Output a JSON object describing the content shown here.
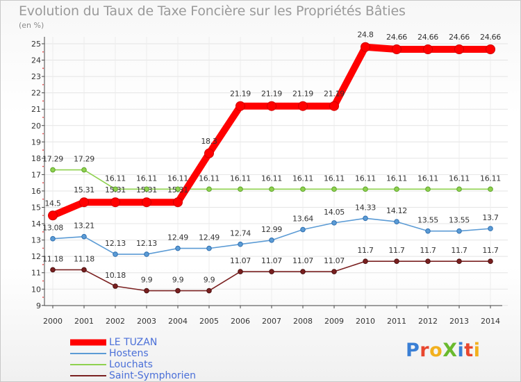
{
  "title": "Evolution du Taux de Taxe Foncière sur les Propriétés Bâties",
  "unit_label": "(en %)",
  "logo": {
    "text": "ProXiti",
    "colors": [
      "#3a7fd5",
      "#e8462e",
      "#f2b01e",
      "#6aba2e",
      "#3a7fd5",
      "#e8462e",
      "#f2b01e"
    ]
  },
  "chart_data": {
    "type": "line",
    "title": "Evolution du Taux de Taxe Foncière sur les Propriétés Bâties",
    "ylabel": "(en %)",
    "x": [
      "2000",
      "2001",
      "2002",
      "2003",
      "2004",
      "2005",
      "2006",
      "2007",
      "2008",
      "2009",
      "2010",
      "2011",
      "2012",
      "2013",
      "2014"
    ],
    "ylim": [
      9,
      25
    ],
    "yticks": [
      9,
      10,
      11,
      12,
      13,
      14,
      15,
      16,
      17,
      18,
      19,
      20,
      21,
      22,
      23,
      24,
      25
    ],
    "grid": true,
    "legend_position": "bottom-left",
    "series": [
      {
        "name": "LE TUZAN",
        "color": "#ff0000",
        "values": [
          14.5,
          15.31,
          15.31,
          15.31,
          15.31,
          18.3,
          21.19,
          21.19,
          21.19,
          21.19,
          24.8,
          24.66,
          24.66,
          24.66,
          24.66
        ],
        "labels": [
          "14.5",
          "15.31",
          "15.31",
          "15.31",
          "15.31",
          "18.3",
          "21.19",
          "21.19",
          "21.19",
          "21.19",
          "24.8",
          "24.66",
          "24.66",
          "24.66",
          "24.66"
        ]
      },
      {
        "name": "Hostens",
        "color": "#5b9bd5",
        "values": [
          13.08,
          13.21,
          12.13,
          12.13,
          12.49,
          12.49,
          12.74,
          12.99,
          13.64,
          14.05,
          14.33,
          14.12,
          13.55,
          13.55,
          13.7
        ],
        "labels": [
          "13.08",
          "13.21",
          "12.13",
          "12.13",
          "12.49",
          "12.49",
          "12.74",
          "12.99",
          "13.64",
          "14.05",
          "14.33",
          "14.12",
          "13.55",
          "13.55",
          "13.7"
        ]
      },
      {
        "name": "Louchats",
        "color": "#8fd14f",
        "values": [
          17.29,
          17.29,
          16.11,
          16.11,
          16.11,
          16.11,
          16.11,
          16.11,
          16.11,
          16.11,
          16.11,
          16.11,
          16.11,
          16.11,
          16.11
        ],
        "labels": [
          "17.29",
          "17.29",
          "16.11",
          "16.11",
          "16.11",
          "16.11",
          "16.11",
          "16.11",
          "16.11",
          "16.11",
          "16.11",
          "16.11",
          "16.11",
          "16.11",
          "16.11"
        ]
      },
      {
        "name": "Saint-Symphorien",
        "color": "#7a2020",
        "values": [
          11.18,
          11.18,
          10.18,
          9.9,
          9.9,
          9.9,
          11.07,
          11.07,
          11.07,
          11.07,
          11.7,
          11.7,
          11.7,
          11.7,
          11.7
        ],
        "labels": [
          "11.18",
          "11.18",
          "10.18",
          "9.9",
          "9.9",
          "9.9",
          "11.07",
          "11.07",
          "11.07",
          "11.07",
          "11.7",
          "11.7",
          "11.7",
          "11.7",
          "11.7"
        ]
      }
    ]
  }
}
